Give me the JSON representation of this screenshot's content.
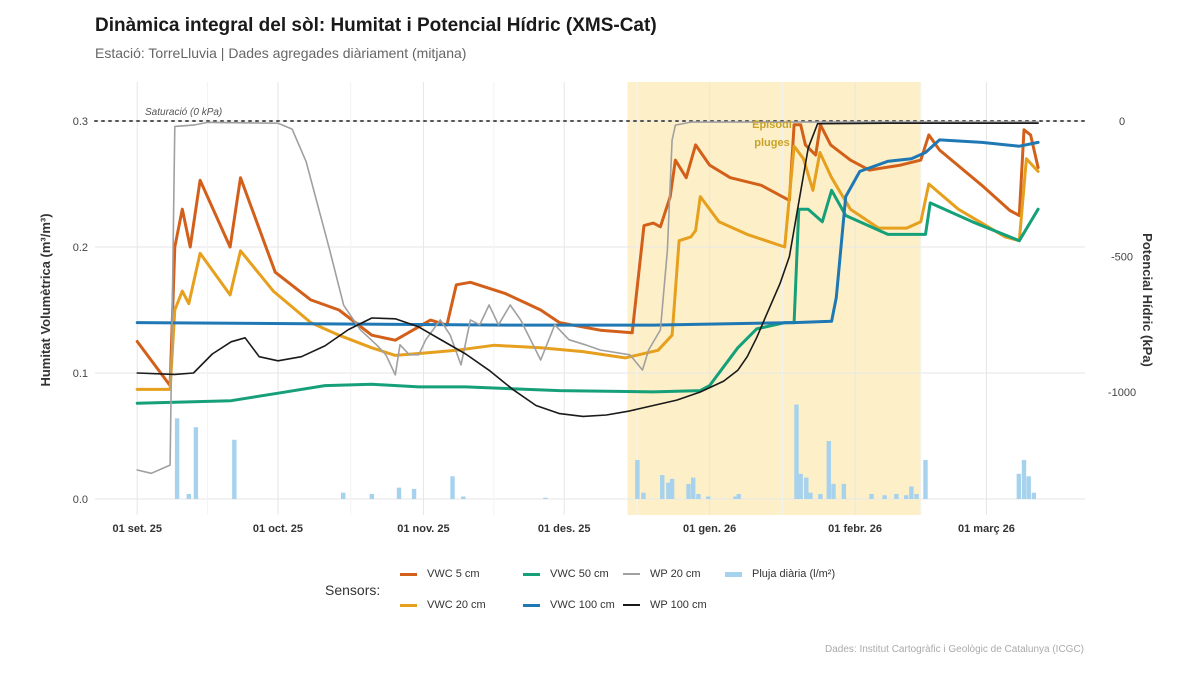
{
  "chart_data": {
    "type": "line",
    "title": "Dinàmica integral del sòl: Humitat i Potencial Hídric (XMS-Cat)",
    "subtitle": "Estació: TorreLluvia | Dades agregades diàriament (mitjana)",
    "ylabel": "Humitat Volumètrica (m³/m³)",
    "y2label": "Potencial Hídric (kPa)",
    "caption": "Dades: Institut Cartogràfic i Geològic de Catalunya (ICGC)",
    "x_unit": "days since 01 set. 25",
    "xlim": [
      -9,
      202
    ],
    "ylim": [
      0,
      0.3
    ],
    "y2lim": [
      -1395,
      0
    ],
    "grid": true,
    "x_ticks": [
      {
        "day": 0,
        "label": "01 set. 25"
      },
      {
        "day": 30,
        "label": "01 oct. 25"
      },
      {
        "day": 61,
        "label": "01 nov. 25"
      },
      {
        "day": 91,
        "label": "01 des. 25"
      },
      {
        "day": 122,
        "label": "01 gen. 26"
      },
      {
        "day": 153,
        "label": "01 febr. 26"
      },
      {
        "day": 181,
        "label": "01 març 26"
      }
    ],
    "y_ticks": [
      {
        "v": 0,
        "label": "0.0"
      },
      {
        "v": 0.1,
        "label": "0.1"
      },
      {
        "v": 0.2,
        "label": "0.2"
      },
      {
        "v": 0.3,
        "label": "0.3"
      }
    ],
    "y2_ticks": [
      {
        "v": 0,
        "label": "0"
      },
      {
        "v": -500,
        "label": "-500"
      },
      {
        "v": -1000,
        "label": "-1000"
      }
    ],
    "saturation_line": {
      "kpa": 0,
      "label": "Saturació (0 kPa)"
    },
    "highlight": {
      "from_day": 104.5,
      "to_day": 167,
      "label_line1": "Episodi",
      "label_line2": "pluges",
      "color": "#fdf0c8",
      "text_color": "#c9a227"
    },
    "legend": {
      "title": "Sensors:",
      "placement": "bottom"
    },
    "series": [
      {
        "name": "VWC 5 cm",
        "axis": "left",
        "color": "#d2601a",
        "width": 3,
        "points": [
          [
            0,
            0.125
          ],
          [
            7,
            0.09
          ],
          [
            8,
            0.2
          ],
          [
            9.6,
            0.23
          ],
          [
            11.3,
            0.2
          ],
          [
            13.4,
            0.253
          ],
          [
            19.8,
            0.2
          ],
          [
            22,
            0.255
          ],
          [
            29.4,
            0.18
          ],
          [
            37,
            0.158
          ],
          [
            43,
            0.15
          ],
          [
            50,
            0.13
          ],
          [
            55,
            0.126
          ],
          [
            62.5,
            0.142
          ],
          [
            66,
            0.138
          ],
          [
            68,
            0.17
          ],
          [
            71,
            0.172
          ],
          [
            78.5,
            0.163
          ],
          [
            86,
            0.15
          ],
          [
            90,
            0.14
          ],
          [
            98.7,
            0.134
          ],
          [
            105.5,
            0.132
          ],
          [
            108,
            0.217
          ],
          [
            110,
            0.219
          ],
          [
            111.5,
            0.216
          ],
          [
            113.6,
            0.24
          ],
          [
            114.7,
            0.269
          ],
          [
            117,
            0.255
          ],
          [
            119,
            0.281
          ],
          [
            122,
            0.265
          ],
          [
            126.4,
            0.255
          ],
          [
            133,
            0.249
          ],
          [
            139,
            0.237
          ],
          [
            140,
            0.297
          ],
          [
            141.4,
            0.297
          ],
          [
            142.4,
            0.281
          ],
          [
            144.6,
            0.273
          ],
          [
            145.6,
            0.297
          ],
          [
            147.8,
            0.281
          ],
          [
            152,
            0.269
          ],
          [
            156,
            0.261
          ],
          [
            162.7,
            0.265
          ],
          [
            167,
            0.269
          ],
          [
            168.7,
            0.289
          ],
          [
            171,
            0.277
          ],
          [
            180,
            0.249
          ],
          [
            186,
            0.229
          ],
          [
            188,
            0.225
          ],
          [
            189,
            0.293
          ],
          [
            190.4,
            0.289
          ],
          [
            192,
            0.263
          ]
        ]
      },
      {
        "name": "VWC 20 cm",
        "axis": "left",
        "color": "#e6a01e",
        "width": 3,
        "points": [
          [
            0,
            0.087
          ],
          [
            7,
            0.087
          ],
          [
            8,
            0.15
          ],
          [
            9.6,
            0.165
          ],
          [
            11,
            0.155
          ],
          [
            13.4,
            0.195
          ],
          [
            19.8,
            0.162
          ],
          [
            22,
            0.197
          ],
          [
            29,
            0.165
          ],
          [
            37,
            0.14
          ],
          [
            43,
            0.13
          ],
          [
            50,
            0.12
          ],
          [
            55,
            0.114
          ],
          [
            62,
            0.116
          ],
          [
            68,
            0.118
          ],
          [
            76,
            0.122
          ],
          [
            86,
            0.12
          ],
          [
            95,
            0.117
          ],
          [
            104,
            0.112
          ],
          [
            111,
            0.118
          ],
          [
            114,
            0.13
          ],
          [
            115.5,
            0.205
          ],
          [
            118,
            0.208
          ],
          [
            119,
            0.213
          ],
          [
            120,
            0.24
          ],
          [
            124,
            0.22
          ],
          [
            130,
            0.21
          ],
          [
            138,
            0.2
          ],
          [
            140,
            0.28
          ],
          [
            142,
            0.27
          ],
          [
            144,
            0.245
          ],
          [
            145.5,
            0.275
          ],
          [
            148,
            0.255
          ],
          [
            152,
            0.23
          ],
          [
            158,
            0.215
          ],
          [
            164,
            0.215
          ],
          [
            167,
            0.22
          ],
          [
            168.7,
            0.25
          ],
          [
            175,
            0.23
          ],
          [
            185,
            0.208
          ],
          [
            188,
            0.205
          ],
          [
            189.5,
            0.27
          ],
          [
            192,
            0.26
          ]
        ]
      },
      {
        "name": "VWC 50 cm",
        "axis": "left",
        "color": "#16a07a",
        "width": 3,
        "points": [
          [
            0,
            0.076
          ],
          [
            20,
            0.078
          ],
          [
            30,
            0.084
          ],
          [
            40,
            0.09
          ],
          [
            50,
            0.091
          ],
          [
            60,
            0.089
          ],
          [
            70,
            0.089
          ],
          [
            90,
            0.086
          ],
          [
            110,
            0.085
          ],
          [
            120,
            0.086
          ],
          [
            122,
            0.09
          ],
          [
            125,
            0.105
          ],
          [
            128,
            0.12
          ],
          [
            132,
            0.135
          ],
          [
            138,
            0.14
          ],
          [
            140,
            0.14
          ],
          [
            141,
            0.23
          ],
          [
            143,
            0.23
          ],
          [
            146,
            0.22
          ],
          [
            148,
            0.245
          ],
          [
            151,
            0.225
          ],
          [
            160,
            0.21
          ],
          [
            168,
            0.21
          ],
          [
            169,
            0.235
          ],
          [
            178,
            0.22
          ],
          [
            188,
            0.205
          ],
          [
            192,
            0.23
          ]
        ]
      },
      {
        "name": "VWC 100 cm",
        "axis": "left",
        "color": "#1f78b4",
        "width": 3,
        "points": [
          [
            0,
            0.14
          ],
          [
            40,
            0.139
          ],
          [
            80,
            0.138
          ],
          [
            110,
            0.138
          ],
          [
            140,
            0.14
          ],
          [
            148,
            0.141
          ],
          [
            149,
            0.16
          ],
          [
            150,
            0.2
          ],
          [
            151,
            0.24
          ],
          [
            154,
            0.26
          ],
          [
            160,
            0.268
          ],
          [
            165,
            0.27
          ],
          [
            168,
            0.275
          ],
          [
            171,
            0.285
          ],
          [
            180,
            0.283
          ],
          [
            188,
            0.28
          ],
          [
            192,
            0.283
          ]
        ]
      },
      {
        "name": "WP 20 cm",
        "axis": "right",
        "color": "#a0a0a0",
        "width": 1.6,
        "points": [
          [
            0,
            -1288
          ],
          [
            3,
            -1300
          ],
          [
            7,
            -1270
          ],
          [
            8,
            -20
          ],
          [
            12,
            -15
          ],
          [
            15,
            -5
          ],
          [
            30,
            -8
          ],
          [
            33,
            -30
          ],
          [
            36,
            -150
          ],
          [
            41,
            -475
          ],
          [
            44,
            -680
          ],
          [
            47.5,
            -770
          ],
          [
            51,
            -826
          ],
          [
            53,
            -863
          ],
          [
            55,
            -937
          ],
          [
            56,
            -826
          ],
          [
            58,
            -863
          ],
          [
            60,
            -863
          ],
          [
            61.5,
            -807
          ],
          [
            64.6,
            -734
          ],
          [
            66.7,
            -790
          ],
          [
            69,
            -900
          ],
          [
            71,
            -734
          ],
          [
            73,
            -752
          ],
          [
            75,
            -679
          ],
          [
            77,
            -752
          ],
          [
            79.5,
            -679
          ],
          [
            81.7,
            -734
          ],
          [
            86,
            -882
          ],
          [
            89,
            -752
          ],
          [
            92,
            -807
          ],
          [
            95.5,
            -826
          ],
          [
            98.7,
            -845
          ],
          [
            105,
            -863
          ],
          [
            107.7,
            -919
          ],
          [
            109,
            -845
          ],
          [
            111.5,
            -771
          ],
          [
            113,
            -476
          ],
          [
            114,
            -70
          ],
          [
            114.7,
            -15
          ],
          [
            118,
            -4
          ],
          [
            141,
            -4
          ],
          [
            192,
            -4
          ]
        ]
      },
      {
        "name": "WP 100 cm",
        "axis": "right",
        "color": "#1a1a1a",
        "width": 1.6,
        "points": [
          [
            0,
            -930
          ],
          [
            8,
            -935
          ],
          [
            12,
            -930
          ],
          [
            16,
            -860
          ],
          [
            20,
            -815
          ],
          [
            23,
            -800
          ],
          [
            26,
            -870
          ],
          [
            30,
            -885
          ],
          [
            35,
            -870
          ],
          [
            40,
            -830
          ],
          [
            45,
            -770
          ],
          [
            50,
            -727
          ],
          [
            55,
            -730
          ],
          [
            60,
            -760
          ],
          [
            65,
            -810
          ],
          [
            70,
            -860
          ],
          [
            75,
            -920
          ],
          [
            80,
            -990
          ],
          [
            85,
            -1050
          ],
          [
            90,
            -1080
          ],
          [
            95,
            -1090
          ],
          [
            100,
            -1085
          ],
          [
            105,
            -1070
          ],
          [
            110,
            -1050
          ],
          [
            115,
            -1030
          ],
          [
            120,
            -1000
          ],
          [
            125,
            -960
          ],
          [
            128,
            -920
          ],
          [
            130,
            -870
          ],
          [
            132,
            -800
          ],
          [
            134,
            -720
          ],
          [
            137,
            -600
          ],
          [
            139,
            -500
          ],
          [
            141,
            -300
          ],
          [
            143,
            -100
          ],
          [
            145,
            -10
          ],
          [
            160,
            -8
          ],
          [
            192,
            -8
          ]
        ]
      }
    ],
    "rain": {
      "name": "Pluja diària (l/m²)",
      "color": "#a6d2ee",
      "axis": "left",
      "bars": [
        [
          8.5,
          0.064
        ],
        [
          11,
          0.004
        ],
        [
          12.5,
          0.057
        ],
        [
          20.7,
          0.047
        ],
        [
          43.9,
          0.005
        ],
        [
          50,
          0.004
        ],
        [
          55.8,
          0.009
        ],
        [
          59,
          0.008
        ],
        [
          67.2,
          0.018
        ],
        [
          69.5,
          0.002
        ],
        [
          87,
          0.001
        ],
        [
          106.6,
          0.031
        ],
        [
          107.9,
          0.005
        ],
        [
          111.9,
          0.019
        ],
        [
          113.2,
          0.013
        ],
        [
          114,
          0.016
        ],
        [
          117.5,
          0.012
        ],
        [
          118.5,
          0.017
        ],
        [
          119.6,
          0.004
        ],
        [
          121.7,
          0.002
        ],
        [
          127.5,
          0.002
        ],
        [
          128.2,
          0.004
        ],
        [
          140.5,
          0.075
        ],
        [
          141.4,
          0.02
        ],
        [
          142.6,
          0.017
        ],
        [
          143.5,
          0.005
        ],
        [
          145.6,
          0.004
        ],
        [
          147.4,
          0.046
        ],
        [
          148.4,
          0.012
        ],
        [
          150.6,
          0.012
        ],
        [
          156.5,
          0.004
        ],
        [
          159.3,
          0.003
        ],
        [
          161.8,
          0.004
        ],
        [
          163.9,
          0.003
        ],
        [
          165,
          0.01
        ],
        [
          166.1,
          0.004
        ],
        [
          168,
          0.031
        ],
        [
          187.9,
          0.02
        ],
        [
          189,
          0.031
        ],
        [
          190,
          0.018
        ],
        [
          191.1,
          0.005
        ]
      ]
    }
  }
}
